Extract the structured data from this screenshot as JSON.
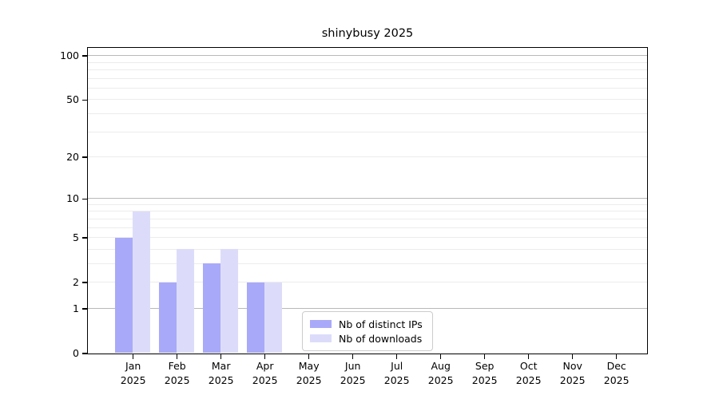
{
  "chart_data": {
    "type": "bar",
    "title": "shinybusy 2025",
    "categories": [
      "Jan",
      "Feb",
      "Mar",
      "Apr",
      "May",
      "Jun",
      "Jul",
      "Aug",
      "Sep",
      "Oct",
      "Nov",
      "Dec"
    ],
    "category_year": "2025",
    "series": [
      {
        "name": "Nb of distinct IPs",
        "color": "#a9a9f9",
        "values": [
          5,
          2,
          3,
          2,
          0,
          0,
          0,
          0,
          0,
          0,
          0,
          0
        ]
      },
      {
        "name": "Nb of downloads",
        "color": "#dcdcfa",
        "values": [
          8,
          4,
          4,
          2,
          0,
          0,
          0,
          0,
          0,
          0,
          0,
          0
        ]
      }
    ],
    "y_axis": {
      "scale": "log1p",
      "tick_labels": [
        "0",
        "1",
        "2",
        "5",
        "10",
        "20",
        "50",
        "100"
      ],
      "tick_values": [
        0,
        1,
        2,
        5,
        10,
        20,
        50,
        100
      ],
      "major_gridlines": [
        1,
        10,
        100
      ],
      "minor_gridlines": [
        2,
        3,
        4,
        5,
        6,
        7,
        8,
        9,
        20,
        30,
        40,
        50,
        60,
        70,
        80,
        90
      ],
      "top_value": 113.5,
      "bottom_value": 0
    },
    "x_axis": {
      "grid": false
    },
    "legend": {
      "position": "bottom-center-inside"
    },
    "colors": {
      "distinct_ips": "#a9a9f9",
      "downloads": "#dcdcfa",
      "major_grid": "#b9b9b9",
      "minor_grid": "#ececec",
      "spine": "#000000",
      "background": "#ffffff"
    }
  }
}
